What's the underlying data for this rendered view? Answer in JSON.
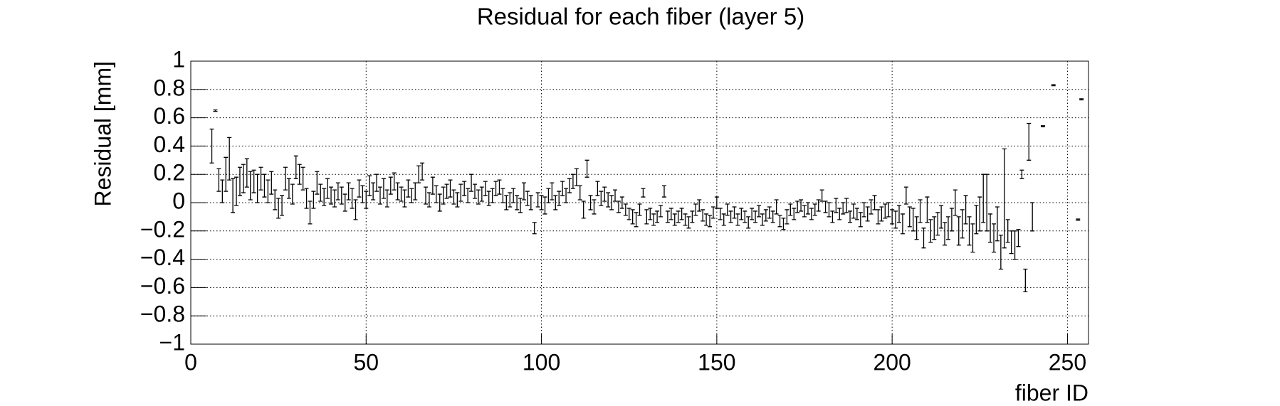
{
  "chart_data": {
    "type": "errorbar",
    "title": "Residual for each fiber (layer 5)",
    "x_label": "fiber ID",
    "y_label": "Residual [mm]",
    "xlim": [
      0,
      256
    ],
    "ylim": [
      -1,
      1
    ],
    "xticks": [
      0,
      50,
      100,
      150,
      200,
      250
    ],
    "yticks": [
      {
        "value": -1,
        "label": "−1"
      },
      {
        "value": -0.8,
        "label": "−0.8"
      },
      {
        "value": -0.6,
        "label": "−0.6"
      },
      {
        "value": -0.4,
        "label": "−0.4"
      },
      {
        "value": -0.2,
        "label": "−0.2"
      },
      0,
      0.2,
      0.4,
      0.6,
      0.8,
      1
    ],
    "grid": true,
    "color": "#000000",
    "x": [
      6,
      7,
      8,
      9,
      10,
      11,
      12,
      13,
      14,
      15,
      16,
      17,
      18,
      19,
      20,
      21,
      22,
      23,
      24,
      25,
      26,
      27,
      28,
      29,
      30,
      31,
      32,
      33,
      34,
      35,
      36,
      37,
      38,
      39,
      40,
      41,
      42,
      43,
      44,
      45,
      46,
      47,
      48,
      49,
      50,
      51,
      52,
      53,
      54,
      55,
      56,
      57,
      58,
      59,
      60,
      61,
      62,
      63,
      64,
      65,
      66,
      67,
      68,
      69,
      70,
      71,
      72,
      73,
      74,
      75,
      76,
      77,
      78,
      79,
      80,
      81,
      82,
      83,
      84,
      85,
      86,
      87,
      88,
      89,
      90,
      91,
      92,
      93,
      94,
      95,
      96,
      97,
      98,
      99,
      100,
      101,
      102,
      103,
      104,
      105,
      106,
      107,
      108,
      109,
      110,
      111,
      112,
      113,
      114,
      115,
      116,
      117,
      118,
      119,
      120,
      121,
      122,
      123,
      124,
      125,
      126,
      127,
      128,
      129,
      130,
      131,
      132,
      133,
      134,
      135,
      136,
      137,
      138,
      139,
      140,
      141,
      142,
      143,
      144,
      145,
      146,
      147,
      148,
      149,
      150,
      151,
      152,
      153,
      154,
      155,
      156,
      157,
      158,
      159,
      160,
      161,
      162,
      163,
      164,
      165,
      166,
      167,
      168,
      169,
      170,
      171,
      172,
      173,
      174,
      175,
      176,
      177,
      178,
      179,
      180,
      181,
      182,
      183,
      184,
      185,
      186,
      187,
      188,
      189,
      190,
      191,
      192,
      193,
      194,
      195,
      196,
      197,
      198,
      199,
      200,
      201,
      202,
      203,
      204,
      205,
      206,
      207,
      208,
      209,
      210,
      211,
      212,
      213,
      214,
      215,
      216,
      217,
      218,
      219,
      220,
      221,
      222,
      223,
      224,
      225,
      226,
      227,
      228,
      229,
      230,
      231,
      232,
      233,
      234,
      235,
      236,
      237,
      238,
      239,
      240,
      243,
      246,
      253,
      254
    ],
    "values": [
      0.4,
      0.65,
      0.16,
      0.08,
      0.2,
      0.31,
      0.05,
      0.08,
      0.15,
      0.17,
      0.21,
      0.12,
      0.15,
      0.1,
      0.17,
      0.12,
      0.08,
      0.14,
      0.02,
      -0.04,
      -0.02,
      0.17,
      0.1,
      0.06,
      0.25,
      0.2,
      0.17,
      0.03,
      -0.07,
      0.02,
      0.14,
      0.07,
      0.04,
      0.1,
      0.05,
      0.03,
      0.08,
      0.05,
      0.0,
      0.08,
      0.03,
      -0.05,
      0.1,
      0.06,
      0.02,
      0.12,
      0.08,
      0.14,
      0.05,
      0.1,
      0.03,
      0.12,
      0.15,
      0.08,
      0.06,
      0.03,
      0.1,
      0.05,
      0.08,
      0.2,
      0.22,
      0.05,
      0.02,
      0.12,
      0.06,
      0.0,
      0.05,
      0.08,
      0.1,
      0.04,
      0.02,
      0.07,
      0.1,
      0.05,
      0.14,
      0.08,
      0.04,
      0.06,
      0.1,
      0.03,
      0.05,
      0.1,
      0.11,
      0.05,
      0.0,
      0.02,
      0.05,
      0.0,
      -0.02,
      0.08,
      0.03,
      0.0,
      -0.18,
      0.02,
      0.0,
      -0.02,
      0.05,
      0.08,
      0.0,
      0.03,
      0.1,
      0.05,
      0.12,
      0.15,
      0.18,
      0.07,
      -0.05,
      0.24,
      0.0,
      -0.03,
      0.1,
      0.03,
      0.06,
      0.02,
      0.0,
      0.05,
      -0.03,
      0.0,
      -0.05,
      -0.08,
      -0.1,
      -0.12,
      -0.05,
      0.07,
      -0.1,
      -0.08,
      -0.12,
      -0.1,
      -0.06,
      0.08,
      -0.1,
      -0.08,
      -0.12,
      -0.1,
      -0.08,
      -0.12,
      -0.14,
      -0.1,
      -0.05,
      -0.02,
      -0.09,
      -0.12,
      -0.13,
      -0.07,
      0.0,
      -0.08,
      -0.12,
      -0.05,
      -0.1,
      -0.07,
      -0.12,
      -0.08,
      -0.1,
      -0.14,
      -0.08,
      -0.1,
      -0.06,
      -0.12,
      -0.09,
      -0.07,
      -0.1,
      -0.03,
      -0.13,
      -0.15,
      -0.1,
      -0.05,
      -0.08,
      -0.03,
      -0.02,
      -0.06,
      -0.04,
      -0.08,
      -0.05,
      -0.02,
      0.05,
      -0.03,
      -0.05,
      -0.1,
      -0.02,
      -0.08,
      -0.04,
      -0.02,
      -0.1,
      -0.06,
      -0.08,
      -0.12,
      -0.05,
      -0.08,
      -0.03,
      0.0,
      -0.1,
      -0.08,
      -0.06,
      -0.05,
      -0.1,
      -0.12,
      -0.08,
      -0.15,
      0.05,
      -0.1,
      -0.12,
      -0.18,
      -0.06,
      -0.25,
      -0.05,
      -0.2,
      -0.18,
      -0.15,
      -0.1,
      -0.22,
      -0.18,
      -0.12,
      0.0,
      -0.2,
      -0.15,
      -0.05,
      -0.2,
      -0.25,
      -0.12,
      -0.08,
      0.03,
      0.0,
      -0.18,
      -0.25,
      -0.15,
      -0.35,
      0.03,
      -0.2,
      -0.28,
      -0.3,
      -0.25,
      0.2,
      -0.55,
      0.43,
      -0.1,
      0.54,
      0.83,
      -0.12,
      0.73
    ],
    "errors": [
      0.12,
      0.005,
      0.08,
      0.08,
      0.12,
      0.15,
      0.12,
      0.1,
      0.1,
      0.1,
      0.1,
      0.1,
      0.08,
      0.1,
      0.08,
      0.08,
      0.08,
      0.08,
      0.07,
      0.07,
      0.07,
      0.08,
      0.07,
      0.07,
      0.08,
      0.07,
      0.08,
      0.07,
      0.08,
      0.06,
      0.08,
      0.06,
      0.06,
      0.07,
      0.06,
      0.06,
      0.06,
      0.06,
      0.06,
      0.06,
      0.07,
      0.07,
      0.06,
      0.06,
      0.06,
      0.07,
      0.06,
      0.06,
      0.06,
      0.07,
      0.06,
      0.06,
      0.06,
      0.06,
      0.05,
      0.06,
      0.06,
      0.05,
      0.06,
      0.06,
      0.06,
      0.06,
      0.05,
      0.06,
      0.06,
      0.06,
      0.06,
      0.05,
      0.06,
      0.05,
      0.05,
      0.06,
      0.05,
      0.05,
      0.06,
      0.05,
      0.05,
      0.05,
      0.05,
      0.05,
      0.05,
      0.05,
      0.05,
      0.05,
      0.05,
      0.05,
      0.05,
      0.05,
      0.05,
      0.06,
      0.05,
      0.05,
      0.04,
      0.05,
      0.05,
      0.06,
      0.05,
      0.06,
      0.05,
      0.05,
      0.05,
      0.05,
      0.05,
      0.05,
      0.06,
      0.05,
      0.06,
      0.06,
      0.05,
      0.05,
      0.05,
      0.05,
      0.05,
      0.05,
      0.05,
      0.04,
      0.04,
      0.04,
      0.04,
      0.04,
      0.05,
      0.05,
      0.04,
      0.03,
      0.05,
      0.04,
      0.04,
      0.04,
      0.04,
      0.04,
      0.04,
      0.04,
      0.04,
      0.04,
      0.04,
      0.04,
      0.04,
      0.04,
      0.04,
      0.04,
      0.04,
      0.04,
      0.04,
      0.04,
      0.04,
      0.04,
      0.04,
      0.04,
      0.04,
      0.04,
      0.04,
      0.04,
      0.04,
      0.04,
      0.04,
      0.04,
      0.04,
      0.04,
      0.04,
      0.04,
      0.04,
      0.05,
      0.04,
      0.04,
      0.05,
      0.04,
      0.04,
      0.04,
      0.04,
      0.04,
      0.04,
      0.04,
      0.04,
      0.04,
      0.04,
      0.04,
      0.05,
      0.04,
      0.05,
      0.04,
      0.04,
      0.05,
      0.04,
      0.05,
      0.04,
      0.05,
      0.05,
      0.05,
      0.05,
      0.05,
      0.05,
      0.05,
      0.05,
      0.05,
      0.05,
      0.06,
      0.06,
      0.07,
      0.06,
      0.07,
      0.08,
      0.08,
      0.08,
      0.07,
      0.09,
      0.08,
      0.08,
      0.08,
      0.08,
      0.08,
      0.08,
      0.08,
      0.09,
      0.1,
      0.1,
      0.1,
      0.1,
      0.1,
      0.1,
      0.12,
      0.17,
      0.2,
      0.1,
      0.1,
      0.12,
      0.12,
      0.35,
      0.08,
      0.08,
      0.1,
      0.06,
      0.03,
      0.08,
      0.13,
      0.1,
      0.004,
      0.004,
      0.004,
      0.004
    ]
  }
}
